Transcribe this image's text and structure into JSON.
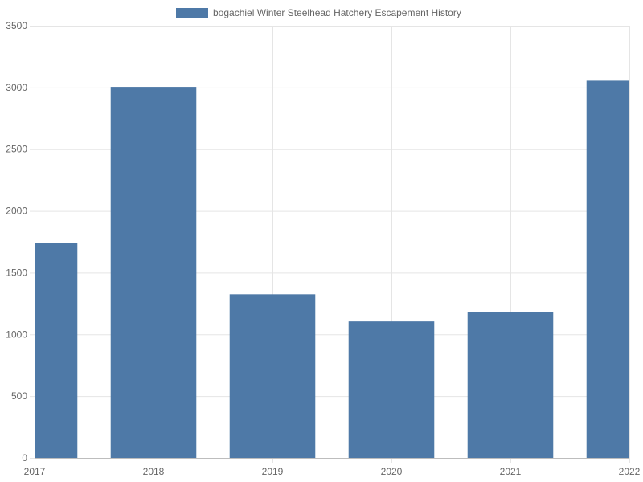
{
  "chart_data": {
    "type": "bar",
    "title": "",
    "xlabel": "",
    "ylabel": "",
    "x": [
      2017,
      2018,
      2019,
      2020,
      2021,
      2022
    ],
    "xlim": [
      2017,
      2022
    ],
    "ylim": [
      0,
      3500
    ],
    "yticks": [
      0,
      500,
      1000,
      1500,
      2000,
      2500,
      3000,
      3500
    ],
    "grid": true,
    "legend_position": "top",
    "series": [
      {
        "name": "bogachiel Winter Steelhead Hatchery Escapement History",
        "color": "#4e79a7",
        "values": [
          1740,
          3005,
          1325,
          1105,
          1180,
          3055
        ]
      }
    ]
  }
}
